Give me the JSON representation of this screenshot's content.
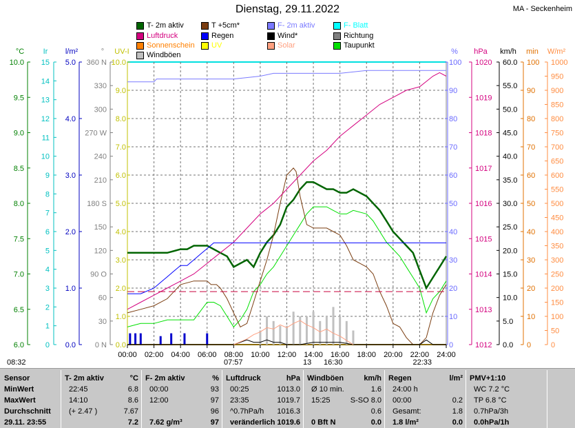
{
  "header": {
    "title": "Dienstag, 29.11.2022",
    "station": "MA - Seckenheim"
  },
  "legend": [
    {
      "label": "T- 2m aktiv",
      "color": "#006400"
    },
    {
      "label": "T +5cm*",
      "color": "#7a3d10"
    },
    {
      "label": "F- 2m aktiv",
      "color": "#7a7aff"
    },
    {
      "label": "F- Blatt",
      "color": "#00ffff"
    },
    {
      "label": "Luftdruck",
      "color": "#d4007f"
    },
    {
      "label": "Regen",
      "color": "#0000ff"
    },
    {
      "label": "Wind*",
      "color": "#000000"
    },
    {
      "label": "Richtung",
      "color": "#808080"
    },
    {
      "label": "Sonnenschein",
      "color": "#ff8000"
    },
    {
      "label": "UV",
      "color": "#ffff00"
    },
    {
      "label": "Solar",
      "color": "#ffa080"
    },
    {
      "label": "Taupunkt",
      "color": "#00e000"
    },
    {
      "label": "Windböen",
      "color": "#c0c0c0"
    }
  ],
  "axes": {
    "temp": {
      "unit": "°C",
      "color": "#008000",
      "ticks": [
        "10.0",
        "9.5",
        "9.0",
        "8.5",
        "8.0",
        "7.5",
        "7.0",
        "6.5",
        "6.0"
      ]
    },
    "ir": {
      "unit": "Ir",
      "color": "#00c0c0",
      "ticks": [
        "15",
        "14",
        "13",
        "12",
        "11",
        "10",
        "9",
        "8",
        "7",
        "6",
        "5",
        "4",
        "3",
        "2",
        "1",
        "0"
      ]
    },
    "rain": {
      "unit": "l/m²",
      "color": "#0000c0",
      "ticks": [
        "5.0",
        "4.0",
        "3.0",
        "2.0",
        "1.0",
        "0.0"
      ]
    },
    "dir": {
      "unit": "°",
      "color": "#808080",
      "ticks": [
        "360 N",
        "330",
        "300",
        "270 W",
        "240",
        "210",
        "180 S",
        "150",
        "120",
        "90 O",
        "60",
        "30",
        "0 N"
      ]
    },
    "uv": {
      "unit": "UV-I",
      "color": "#c0c000",
      "ticks": [
        "10.0",
        "9.0",
        "8.0",
        "7.0",
        "6.0",
        "5.0",
        "4.0",
        "3.0",
        "2.0",
        "1.0",
        "0.0"
      ]
    },
    "hum": {
      "unit": "%",
      "color": "#6a6aff",
      "ticks": [
        "100",
        "90",
        "80",
        "70",
        "60",
        "50",
        "40",
        "30",
        "20",
        "10",
        "0"
      ]
    },
    "press": {
      "unit": "hPa",
      "color": "#d4007f",
      "ticks": [
        "1020",
        "1019",
        "1018",
        "1017",
        "1016",
        "1015",
        "1014",
        "1013",
        "1012"
      ]
    },
    "wind": {
      "unit": "km/h",
      "color": "#000000",
      "ticks": [
        "60.0",
        "55.0",
        "50.0",
        "45.0",
        "40.0",
        "35.0",
        "30.0",
        "25.0",
        "20.0",
        "15.0",
        "10.0",
        "5.0",
        "0.0"
      ]
    },
    "min": {
      "unit": "min",
      "color": "#e07000",
      "ticks": [
        "100",
        "90",
        "80",
        "70",
        "60",
        "50",
        "40",
        "30",
        "20",
        "10",
        "0"
      ]
    },
    "solar": {
      "unit": "W/m²",
      "color": "#ff8c40",
      "ticks": [
        "1000",
        "950",
        "900",
        "850",
        "800",
        "750",
        "700",
        "650",
        "600",
        "550",
        "500",
        "450",
        "400",
        "350",
        "300",
        "250",
        "200",
        "150",
        "100",
        "50",
        "0"
      ]
    },
    "time": [
      "00:00",
      "02:00",
      "04:00",
      "06:00",
      "08:00",
      "10:00",
      "12:00",
      "14:00",
      "16:00",
      "18:00",
      "20:00",
      "22:00",
      "24:00"
    ]
  },
  "sun_marks": {
    "left": "08:32",
    "sunrise": "07:57",
    "noon_a": "13",
    "noon_b": "16:30",
    "sunset": "22:33"
  },
  "chart_data": {
    "type": "line",
    "x_unit": "hours",
    "series": [
      {
        "name": "T- 2m aktiv",
        "axis": "temp",
        "color": "#006400",
        "x": [
          0,
          2,
          3,
          4,
          4.5,
          5,
          6,
          6.5,
          7,
          7.5,
          8,
          8.5,
          9,
          9.5,
          10,
          10.5,
          11,
          11.5,
          12,
          12.5,
          13,
          13.5,
          14,
          14.5,
          15,
          15.5,
          16,
          16.5,
          17,
          18,
          18.5,
          19,
          19.5,
          20,
          20.5,
          21,
          21.5,
          22,
          22.5,
          23,
          23.5,
          24
        ],
        "y": [
          7.3,
          7.3,
          7.3,
          7.35,
          7.35,
          7.4,
          7.4,
          7.35,
          7.3,
          7.25,
          7.1,
          7.15,
          7.2,
          7.1,
          7.3,
          7.45,
          7.55,
          7.7,
          7.95,
          8.05,
          8.2,
          8.3,
          8.3,
          8.25,
          8.2,
          8.2,
          8.15,
          8.15,
          8.2,
          8.1,
          8.0,
          7.9,
          7.75,
          7.6,
          7.5,
          7.4,
          7.3,
          7.05,
          6.8,
          6.95,
          7.1,
          7.25
        ]
      },
      {
        "name": "Taupunkt",
        "axis": "temp",
        "color": "#00e000",
        "x": [
          0,
          1,
          2,
          3,
          4,
          5,
          6,
          6.5,
          7,
          7.5,
          8,
          8.5,
          9,
          9.5,
          10,
          10.5,
          11,
          11.5,
          12,
          12.5,
          13,
          13.5,
          14,
          14.5,
          15,
          15.5,
          16,
          16.5,
          17,
          18,
          18.5,
          19,
          19.5,
          20,
          20.5,
          21,
          21.5,
          22,
          22.5,
          23,
          23.5,
          24
        ],
        "y": [
          6.25,
          6.3,
          6.3,
          6.35,
          6.35,
          6.35,
          6.6,
          6.6,
          6.55,
          6.4,
          6.25,
          6.35,
          6.5,
          6.75,
          6.85,
          7.0,
          7.1,
          7.25,
          7.4,
          7.55,
          7.7,
          7.85,
          7.95,
          7.95,
          7.95,
          7.9,
          7.85,
          7.85,
          7.9,
          7.85,
          7.75,
          7.6,
          7.45,
          7.35,
          7.25,
          7.1,
          6.95,
          6.8,
          6.45,
          6.65,
          6.75,
          6.9
        ]
      },
      {
        "name": "T +5cm*",
        "axis": "temp",
        "color": "#7a3d10",
        "x": [
          0,
          1,
          2,
          3,
          4,
          5,
          6,
          6.3,
          6.7,
          7,
          7.5,
          8,
          8.5,
          9,
          9.5,
          10,
          10.5,
          11,
          11.5,
          12,
          12.5,
          12.7,
          13,
          13.5,
          14,
          14.5,
          15,
          15.5,
          16,
          16.5,
          17,
          17.5,
          18,
          18.5,
          19,
          19.5,
          20,
          20.5,
          21,
          21.5,
          22,
          22.5,
          23,
          23.5,
          24
        ],
        "y": [
          6.45,
          6.5,
          6.55,
          6.65,
          6.85,
          6.9,
          6.9,
          6.85,
          6.85,
          6.8,
          6.65,
          6.45,
          6.25,
          6.3,
          6.6,
          6.9,
          7.2,
          7.55,
          8.0,
          8.4,
          8.5,
          8.45,
          8.1,
          7.7,
          7.65,
          7.65,
          7.65,
          7.6,
          7.55,
          7.4,
          7.2,
          7.15,
          7.1,
          7.0,
          6.75,
          6.55,
          6.3,
          6.25,
          6.1,
          6.0,
          6.0,
          6.1,
          6.45,
          6.7,
          6.85
        ]
      },
      {
        "name": "F- 2m aktiv",
        "axis": "hum",
        "color": "#7a7aff",
        "x": [
          0,
          2,
          2.2,
          4,
          6,
          8,
          10,
          11,
          13,
          14,
          16,
          18,
          20,
          22,
          22.5,
          24
        ],
        "y": [
          93,
          93,
          94,
          94,
          94,
          94,
          95,
          96,
          96,
          96,
          96,
          97,
          97,
          97,
          97,
          97
        ]
      },
      {
        "name": "Luftdruck",
        "axis": "press",
        "color": "#d4007f",
        "x": [
          0,
          1,
          2,
          3,
          4,
          5,
          6,
          7,
          8,
          9,
          10,
          11,
          12,
          13,
          14,
          15,
          16,
          17,
          18,
          19,
          20,
          21,
          22,
          23,
          23.5,
          24
        ],
        "y": [
          1013.0,
          1013.2,
          1013.4,
          1013.6,
          1013.8,
          1014.0,
          1014.3,
          1014.6,
          1014.9,
          1015.3,
          1015.7,
          1016.0,
          1016.4,
          1016.8,
          1017.2,
          1017.5,
          1017.9,
          1018.2,
          1018.5,
          1018.8,
          1019.0,
          1019.2,
          1019.3,
          1019.6,
          1019.7,
          1019.6
        ]
      },
      {
        "name": "Regen",
        "axis": "rain",
        "color": "#0000ff",
        "x": [
          0,
          0.5,
          1,
          2,
          2.5,
          3,
          3.5,
          4,
          4.5,
          5,
          5.5,
          6,
          6.5,
          24
        ],
        "y": [
          0.9,
          0.9,
          0.9,
          1.0,
          1.1,
          1.2,
          1.3,
          1.4,
          1.4,
          1.5,
          1.6,
          1.7,
          1.8,
          1.8
        ]
      },
      {
        "name": "Taupunkt-Ref",
        "axis": "temp",
        "color": "#c8003c",
        "dashed": true,
        "x": [
          0,
          24
        ],
        "y": [
          6.75,
          6.75
        ]
      },
      {
        "name": "Wind*",
        "axis": "wind",
        "color": "#000000",
        "x": [
          0,
          8,
          8.5,
          9,
          9.5,
          10,
          10.5,
          11,
          11.5,
          12,
          13,
          14,
          15,
          16,
          17,
          18,
          20,
          22,
          22.5,
          23,
          24
        ],
        "y": [
          0,
          0,
          0.5,
          1,
          0.5,
          0.5,
          1,
          0.5,
          0.5,
          0,
          0,
          0.5,
          0.5,
          0.5,
          0,
          0,
          0,
          0,
          1,
          0,
          0
        ]
      },
      {
        "name": "Solar",
        "axis": "solar",
        "color": "#ffa080",
        "x": [
          8,
          8.5,
          9,
          9.5,
          10,
          10.5,
          11,
          11.5,
          12,
          12.5,
          13,
          13.5,
          14,
          14.5,
          15,
          15.5,
          16,
          16.5,
          17
        ],
        "y": [
          0,
          10,
          20,
          35,
          45,
          60,
          55,
          70,
          60,
          75,
          85,
          70,
          60,
          45,
          55,
          40,
          30,
          15,
          0
        ]
      }
    ],
    "bars": [
      {
        "name": "Regen-Impuls",
        "axis": "rain",
        "color": "#0000cc",
        "x": [
          0.2,
          0.6,
          1.0,
          2.5,
          3.3,
          4.3,
          6.0
        ],
        "y": [
          0.2,
          0.2,
          0.2,
          0.15,
          0.2,
          0.2,
          0.2
        ]
      },
      {
        "name": "Windböen",
        "axis": "wind",
        "color": "#c0c0c0",
        "x": [
          10,
          10.5,
          11,
          11.5,
          12,
          12.5,
          13,
          13.5,
          14,
          14.5,
          15,
          15.5,
          16,
          16.5,
          17
        ],
        "y": [
          3,
          6,
          5,
          4,
          4,
          7,
          6,
          6,
          7,
          5,
          6,
          8,
          6,
          5,
          3
        ]
      }
    ]
  },
  "table": {
    "cols": [
      {
        "head": "Sensor",
        "unit": "",
        "rows": [
          "MinWert",
          "MaxWert",
          "Durchschnitt",
          "29.11. 23:55"
        ],
        "vals": [
          "",
          "",
          "",
          ""
        ]
      },
      {
        "head": "T- 2m aktiv",
        "unit": "°C",
        "rows": [
          "22:45",
          "14:10",
          "(+ 2.47 )",
          ""
        ],
        "vals": [
          "6.8",
          "8.6",
          "7.67",
          "7.2"
        ]
      },
      {
        "head": "F- 2m aktiv",
        "unit": "%",
        "rows": [
          "00:00",
          "12:00",
          "",
          "7.62 g/m³"
        ],
        "vals": [
          "93",
          "97",
          "96",
          "97"
        ]
      },
      {
        "head": "Luftdruck",
        "unit": "hPa",
        "rows": [
          "00:25",
          "23:35",
          "^0.7hPa/h",
          "veränderlich"
        ],
        "vals": [
          "1013.0",
          "1019.7",
          "1016.3",
          "1019.6"
        ]
      },
      {
        "head": "Windböen",
        "unit": "km/h",
        "rows": [
          "Ø 10 min.",
          "15:25",
          "",
          "0 Bft N"
        ],
        "vals": [
          "1.6",
          "S-SO 8.0",
          "0.6",
          "0.0"
        ]
      },
      {
        "head": "Regen",
        "unit": "l/m²",
        "rows": [
          "24:00 h",
          "00:00",
          "Gesamt:",
          "1.8 l/m²"
        ],
        "vals": [
          "",
          "0.2",
          "1.8",
          "0.0"
        ]
      },
      {
        "head": "PMV+1:10",
        "unit": "",
        "rows": [
          "WC 7.2 °C",
          "TP 6.8 °C",
          "0.7hPa/3h",
          "0.0hPa/1h"
        ],
        "vals": [
          "",
          "",
          "",
          ""
        ]
      }
    ]
  }
}
